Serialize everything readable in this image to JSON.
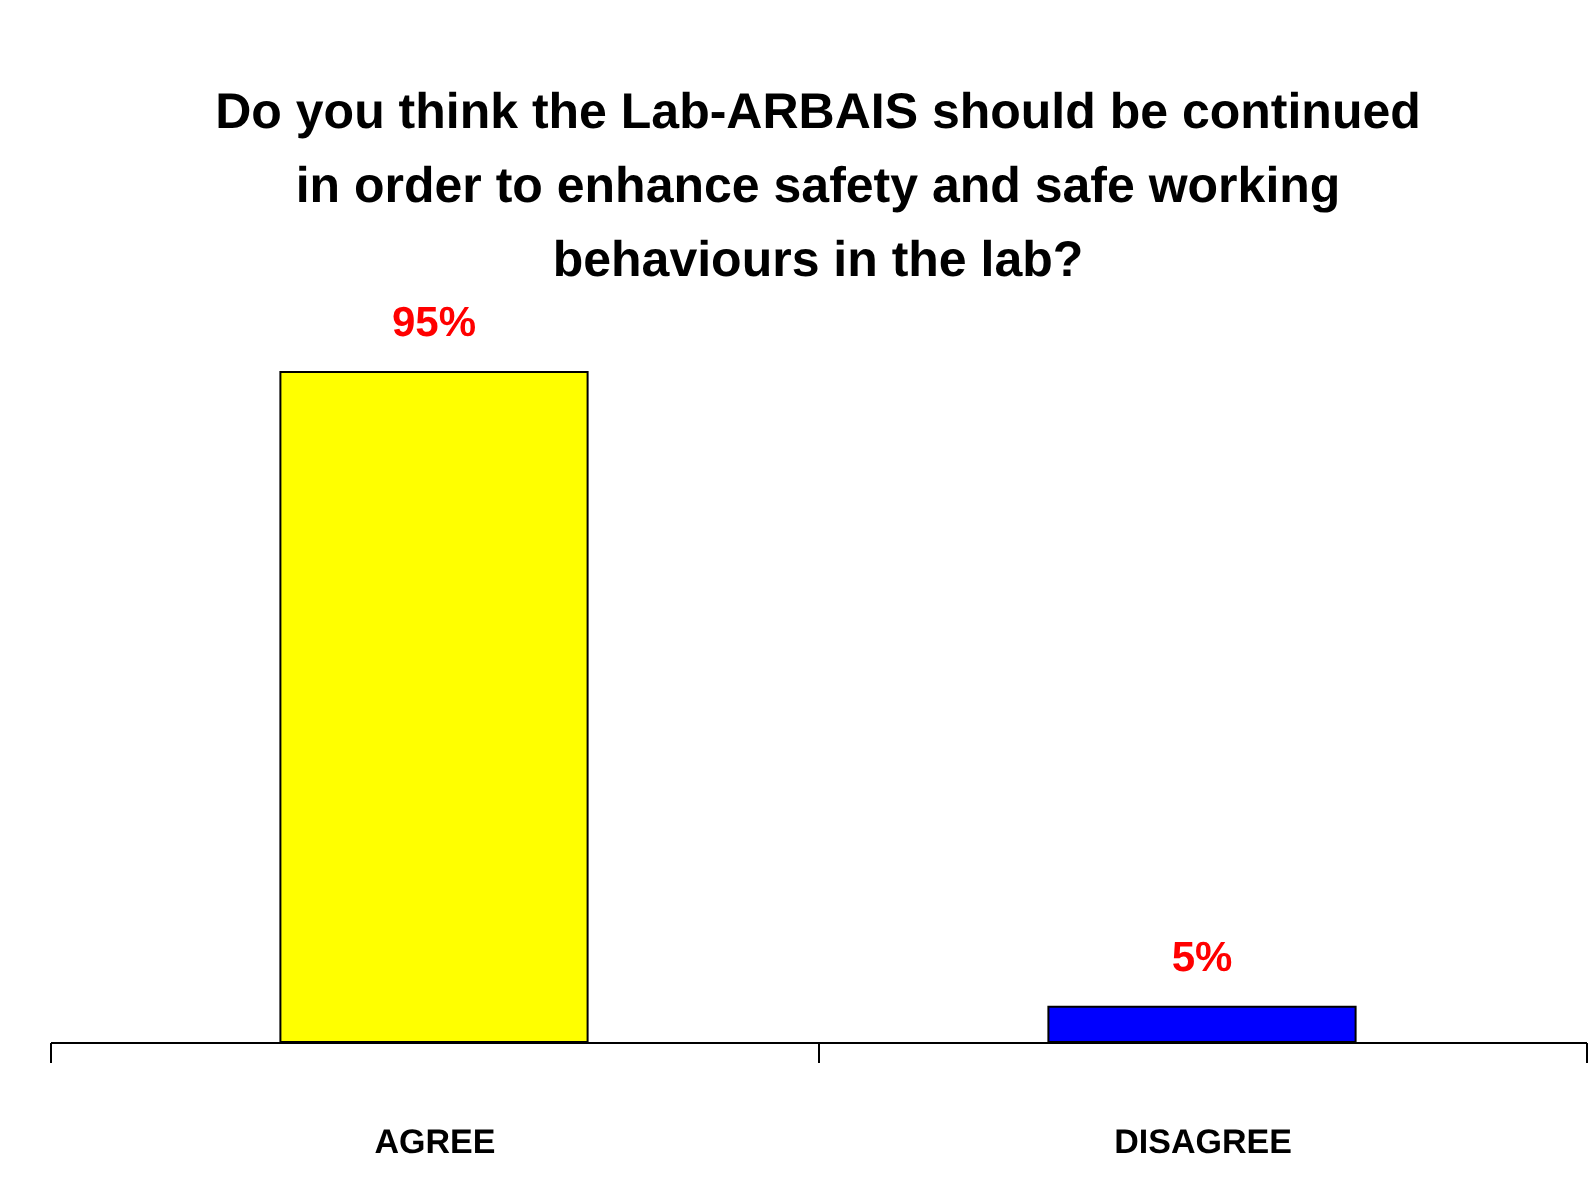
{
  "chart_data": {
    "type": "bar",
    "title": "Do you think the Lab-ARBAIS should be continued\nin order to enhance safety and safe working\nbehaviours in the lab?",
    "categories": [
      "AGREE",
      "DISAGREE"
    ],
    "values": [
      95,
      5
    ],
    "colors": [
      "#ffff00",
      "#0000ff"
    ],
    "value_labels": [
      "95%",
      "5%"
    ],
    "tick_labels": "x"
  }
}
